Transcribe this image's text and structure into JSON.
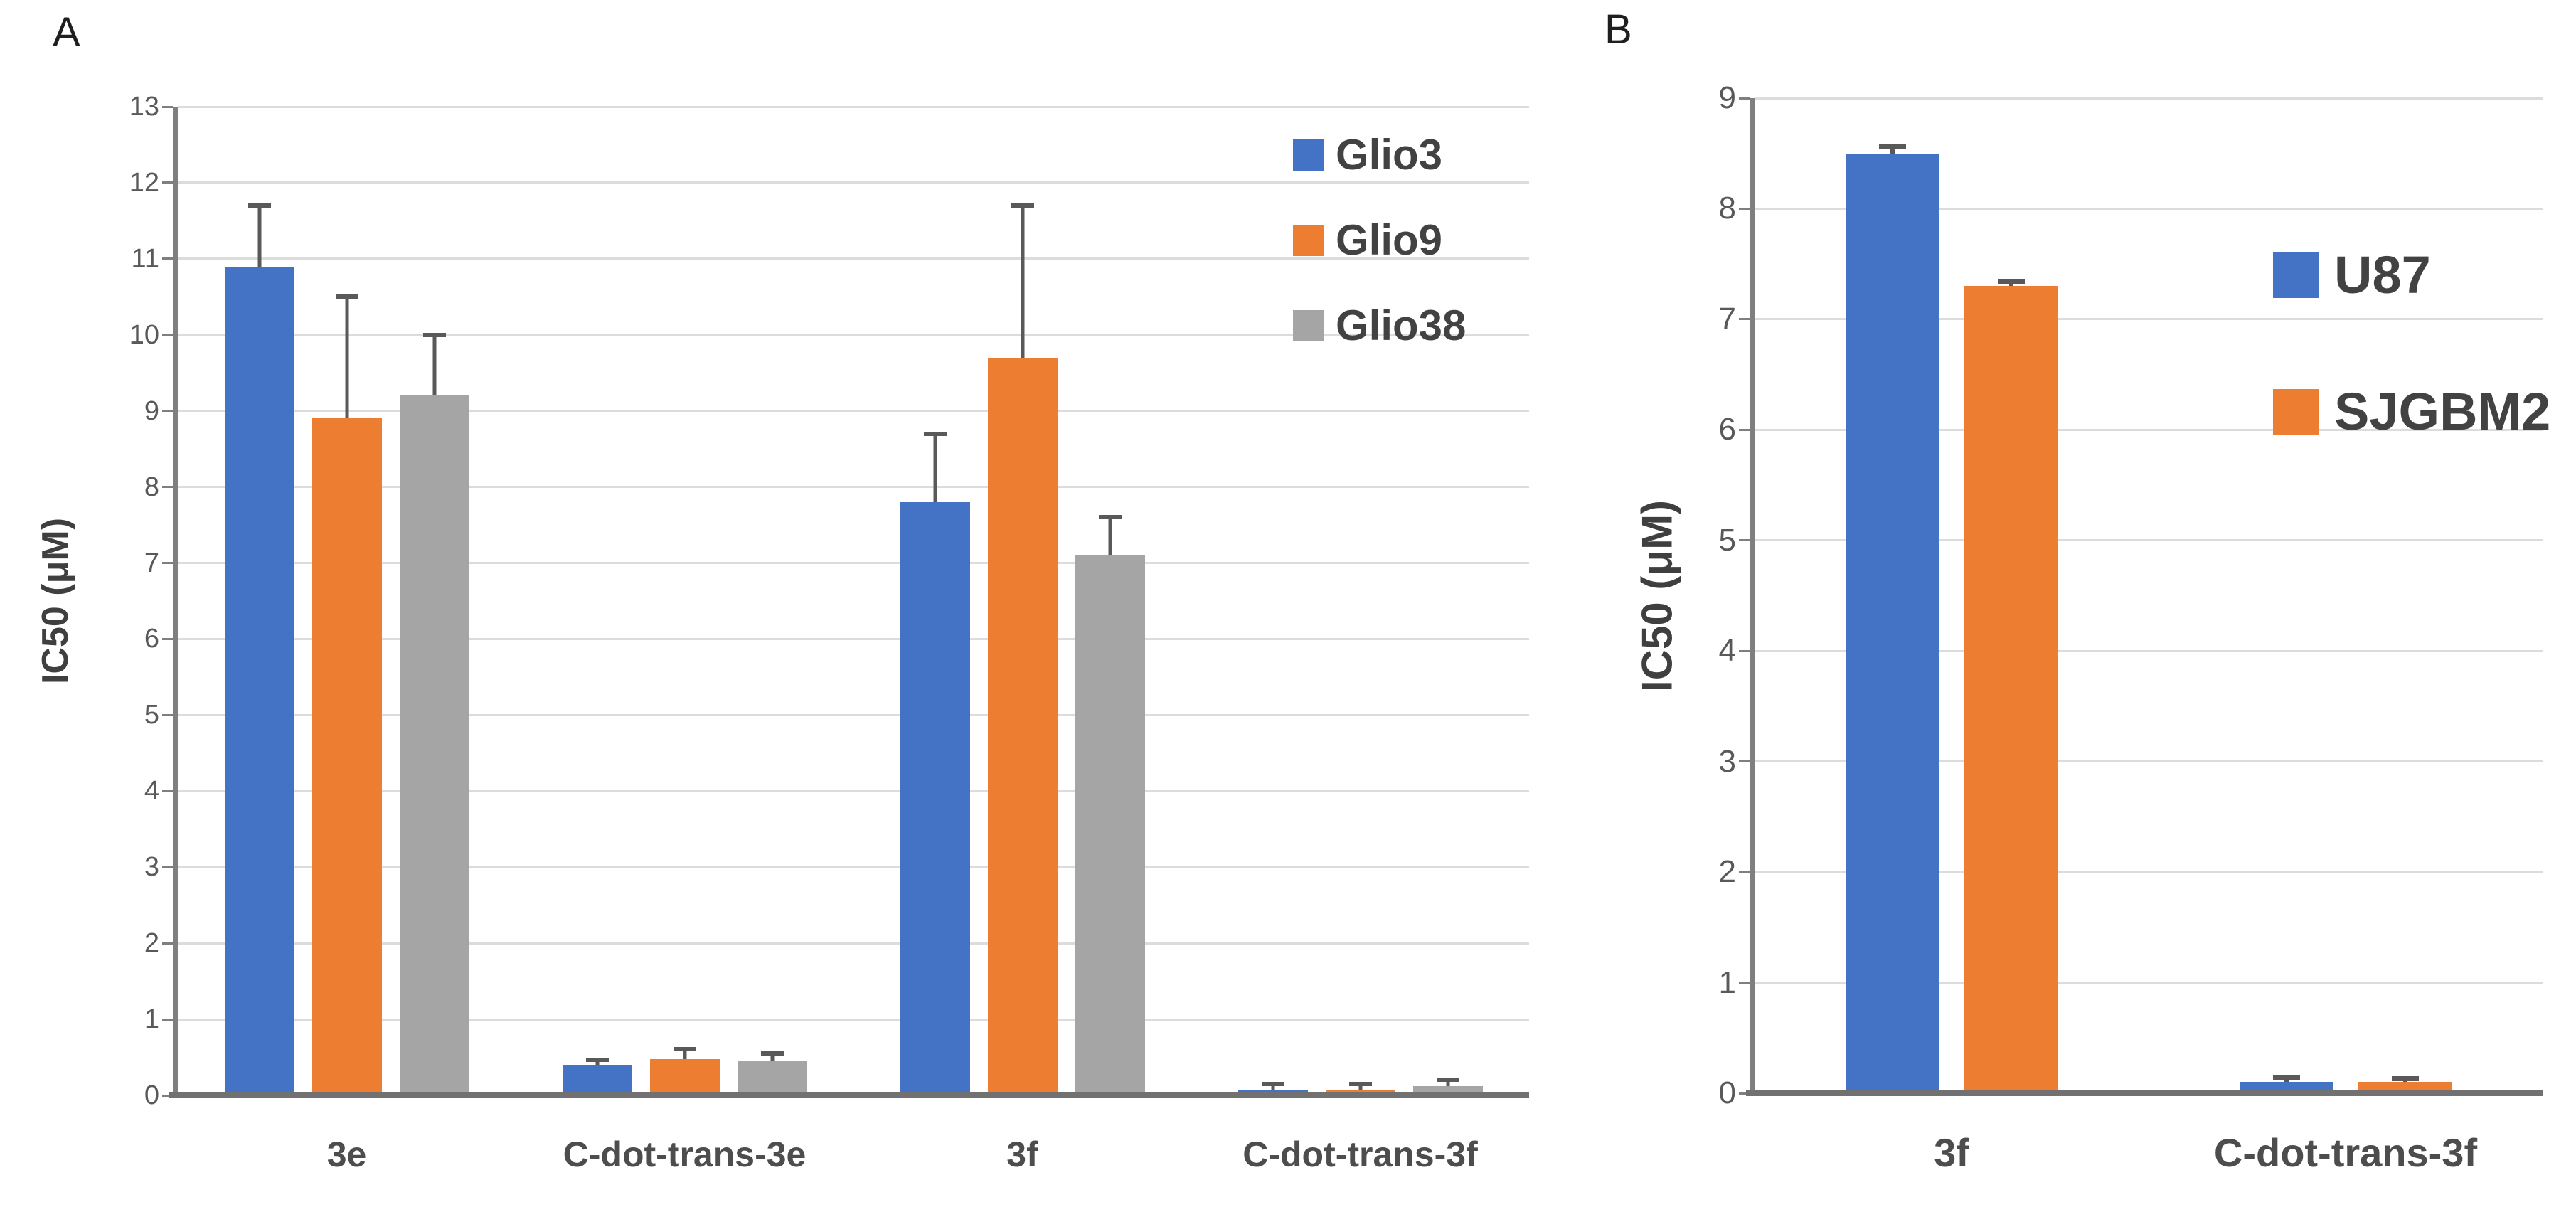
{
  "figure": {
    "background": "#FFFFFF",
    "panels": [
      {
        "letter": "A"
      },
      {
        "letter": "B"
      }
    ]
  },
  "styles": {
    "gridline_color": "#DCDCDC",
    "axis_color": "#7F7F7F",
    "baseline_color": "#717171",
    "tick_color": "#7F7F7F",
    "error_bar_color": "#595959"
  },
  "chart_data": [
    {
      "panel": "A",
      "type": "bar",
      "title": "",
      "xlabel": "",
      "ylabel": "IC50 (μM)",
      "ylim": [
        0,
        13
      ],
      "ytick_step": 1,
      "yticks": [
        0,
        1,
        2,
        3,
        4,
        5,
        6,
        7,
        8,
        9,
        10,
        11,
        12,
        13
      ],
      "grid": true,
      "legend_position": "top-right",
      "categories": [
        "3e",
        "C-dot-trans-3e",
        "3f",
        "C-dot-trans-3f"
      ],
      "series": [
        {
          "name": "Glio3",
          "color": "#4472C4",
          "values": [
            10.9,
            0.4,
            7.8,
            0.07
          ],
          "errors_plus": [
            0.8,
            0.07,
            0.9,
            0.08
          ]
        },
        {
          "name": "Glio9",
          "color": "#ED7D31",
          "values": [
            8.9,
            0.48,
            9.7,
            0.07
          ],
          "errors_plus": [
            1.6,
            0.13,
            2.0,
            0.08
          ]
        },
        {
          "name": "Glio38",
          "color": "#A5A5A5",
          "values": [
            9.2,
            0.45,
            7.1,
            0.12
          ],
          "errors_plus": [
            0.8,
            0.1,
            0.5,
            0.09
          ]
        }
      ]
    },
    {
      "panel": "B",
      "type": "bar",
      "title": "",
      "xlabel": "",
      "ylabel": "IC50 (μM)",
      "ylim": [
        0,
        9
      ],
      "ytick_step": 1,
      "yticks": [
        0,
        1,
        2,
        3,
        4,
        5,
        6,
        7,
        8,
        9
      ],
      "grid": true,
      "legend_position": "top-right",
      "categories": [
        "3f",
        "C-dot-trans-3f"
      ],
      "series": [
        {
          "name": "U87",
          "color": "#4472C4",
          "values": [
            8.5,
            0.1
          ],
          "errors_plus": [
            0.06,
            0.04
          ]
        },
        {
          "name": "SJGBM2",
          "color": "#ED7D31",
          "values": [
            7.3,
            0.1
          ],
          "errors_plus": [
            0.04,
            0.03
          ]
        }
      ]
    }
  ]
}
